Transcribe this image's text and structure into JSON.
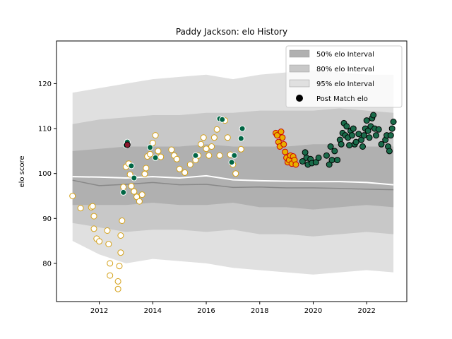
{
  "chart_data": {
    "type": "scatter",
    "title": "Paddy Jackson: elo History",
    "xlabel": "",
    "ylabel": "elo score",
    "xlim": [
      2010.4,
      2023.5
    ],
    "ylim": [
      71.5,
      129.5
    ],
    "x_ticks": [
      2012,
      2014,
      2016,
      2018,
      2020,
      2022
    ],
    "y_ticks": [
      80,
      90,
      100,
      110,
      120
    ],
    "legend_position": "top-right",
    "legend": [
      {
        "label": "50% elo Interval",
        "kind": "band",
        "color": "#b0b0b0"
      },
      {
        "label": "80% elo Interval",
        "kind": "band",
        "color": "#c8c8c8"
      },
      {
        "label": "95% elo Interval",
        "kind": "band",
        "color": "#e0e0e0"
      },
      {
        "label": "Post Match elo",
        "kind": "marker",
        "color": "#000000"
      }
    ],
    "bands": {
      "x": [
        2011.0,
        2012.0,
        2013.0,
        2014.0,
        2015.0,
        2016.0,
        2017.0,
        2018.0,
        2019.0,
        2020.0,
        2021.0,
        2022.0,
        2023.0
      ],
      "p95_low": [
        85.0,
        82.0,
        80.0,
        81.0,
        80.5,
        80.0,
        79.0,
        78.5,
        78.0,
        77.5,
        78.0,
        78.5,
        78.0
      ],
      "p95_high": [
        118.0,
        119.0,
        120.0,
        121.0,
        121.5,
        122.0,
        121.0,
        122.0,
        122.5,
        123.0,
        122.5,
        122.0,
        122.0
      ],
      "p80_low": [
        89.0,
        88.0,
        87.0,
        87.5,
        87.5,
        87.0,
        87.5,
        86.5,
        86.5,
        86.0,
        86.5,
        87.0,
        86.5
      ],
      "p80_high": [
        111.0,
        112.0,
        112.5,
        113.0,
        113.0,
        113.5,
        113.5,
        114.0,
        114.0,
        114.0,
        114.5,
        114.0,
        113.5
      ],
      "p50_low": [
        93.0,
        93.0,
        93.0,
        93.5,
        93.0,
        93.0,
        93.5,
        92.5,
        92.5,
        92.0,
        92.5,
        93.0,
        92.5
      ],
      "p50_high": [
        105.0,
        105.5,
        106.0,
        106.0,
        106.0,
        106.5,
        106.0,
        106.0,
        106.0,
        106.5,
        106.5,
        106.0,
        106.0
      ],
      "mean": [
        99.3,
        99.2,
        99.0,
        99.3,
        99.0,
        99.5,
        98.6,
        98.4,
        98.3,
        98.2,
        98.2,
        98.0,
        97.5
      ],
      "median": [
        98.5,
        97.3,
        97.6,
        98.0,
        97.5,
        97.6,
        96.9,
        97.0,
        96.8,
        96.8,
        96.7,
        96.5,
        96.4
      ]
    },
    "series": [
      {
        "fill": "#ffffff",
        "edge": "#d4a017",
        "x": [
          2011.0,
          2011.3,
          2011.7,
          2011.75,
          2011.8,
          2011.8,
          2011.9,
          2012.0,
          2012.3,
          2012.35,
          2012.4,
          2012.4,
          2012.7,
          2012.7,
          2012.75,
          2012.8,
          2012.8,
          2012.85,
          2012.9,
          2013.0,
          2013.1,
          2013.15,
          2013.2,
          2013.3,
          2013.4,
          2013.5,
          2013.6,
          2013.7,
          2013.75,
          2013.8,
          2013.9,
          2014.0,
          2014.1,
          2014.2,
          2014.3,
          2014.7,
          2014.8,
          2014.9,
          2015.0,
          2015.2,
          2015.4,
          2015.6,
          2015.7,
          2015.8,
          2015.9,
          2016.0,
          2016.1,
          2016.2,
          2016.3,
          2016.4,
          2016.5,
          2016.7,
          2016.8,
          2016.9,
          2017.0,
          2017.1,
          2017.3
        ],
        "y": [
          95.0,
          92.3,
          92.5,
          92.7,
          90.5,
          87.7,
          85.5,
          84.9,
          87.3,
          84.3,
          80.0,
          77.3,
          74.3,
          76.0,
          79.4,
          82.4,
          86.2,
          89.5,
          97.0,
          101.5,
          102.2,
          99.8,
          97.2,
          96.0,
          94.8,
          93.8,
          95.3,
          99.9,
          101.2,
          103.8,
          104.3,
          106.8,
          108.5,
          105.0,
          103.7,
          105.3,
          104.0,
          103.2,
          101.0,
          100.2,
          102.0,
          103.0,
          104.0,
          106.5,
          108.0,
          105.5,
          104.0,
          106.0,
          108.0,
          109.8,
          104.0,
          111.8,
          108.0,
          104.2,
          102.0,
          100.0,
          105.4
        ]
      },
      {
        "fill": "#006644",
        "edge": "#ffffff",
        "x": [
          2012.9,
          2013.0,
          2013.05,
          2013.2,
          2013.3,
          2013.9,
          2014.1,
          2015.6,
          2016.5,
          2016.6,
          2016.95,
          2017.05,
          2017.3,
          2017.35
        ],
        "y": [
          95.8,
          106.3,
          107.0,
          101.7,
          99.0,
          105.8,
          103.5,
          104.0,
          112.2,
          112.0,
          102.5,
          104.0,
          107.8,
          110.0
        ]
      },
      {
        "fill": "#1a6b4a",
        "edge": "#000000",
        "x": [
          2019.6,
          2019.7,
          2019.75,
          2019.8,
          2019.9,
          2019.95,
          2020.1,
          2020.2,
          2020.5,
          2020.6,
          2020.65,
          2020.7,
          2020.8,
          2020.9,
          2021.0,
          2021.05,
          2021.1,
          2021.15,
          2021.2,
          2021.25,
          2021.3,
          2021.35,
          2021.4,
          2021.45,
          2021.5,
          2021.55,
          2021.6,
          2021.7,
          2021.8,
          2021.85,
          2021.9,
          2021.95,
          2022.0,
          2022.05,
          2022.1,
          2022.15,
          2022.2,
          2022.25,
          2022.3,
          2022.35,
          2022.45,
          2022.55,
          2022.7,
          2022.75,
          2022.8,
          2022.85,
          2022.9,
          2022.95,
          2023.0
        ],
        "y": [
          102.7,
          104.7,
          103.5,
          102.0,
          103.2,
          102.3,
          102.5,
          103.5,
          104.0,
          102.0,
          106.0,
          103.0,
          105.0,
          103.0,
          107.5,
          106.5,
          109.0,
          111.2,
          108.5,
          110.5,
          108.0,
          106.3,
          109.5,
          108.5,
          110.0,
          106.5,
          107.0,
          108.8,
          107.5,
          106.0,
          108.5,
          110.0,
          111.8,
          109.5,
          108.0,
          110.5,
          112.3,
          113.0,
          110.0,
          108.5,
          109.8,
          106.5,
          107.5,
          108.5,
          106.0,
          105.0,
          108.5,
          110.0,
          111.5
        ]
      },
      {
        "fill": "#e8b000",
        "edge": "#cc0000",
        "x": [
          2018.6,
          2018.65,
          2018.7,
          2018.75,
          2018.8,
          2018.85,
          2018.9,
          2018.95,
          2019.0,
          2019.05,
          2019.1,
          2019.15,
          2019.2,
          2019.25,
          2019.3,
          2019.35
        ],
        "y": [
          109.0,
          108.5,
          107.0,
          106.0,
          109.3,
          108.0,
          106.5,
          104.8,
          103.5,
          102.5,
          103.0,
          104.0,
          102.2,
          103.8,
          103.0,
          102.0
        ]
      },
      {
        "fill": "#8b1a2e",
        "edge": "#000000",
        "x": [
          2013.05
        ],
        "y": [
          106.4
        ]
      }
    ]
  }
}
